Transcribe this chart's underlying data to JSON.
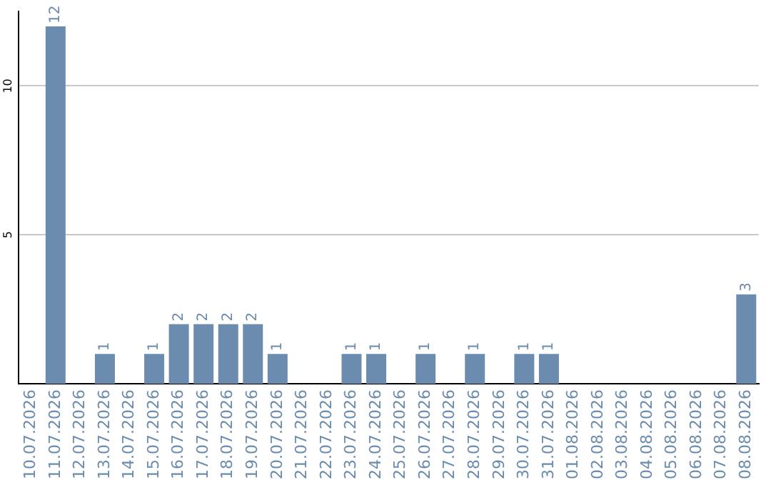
{
  "chart_data": {
    "type": "bar",
    "categories": [
      "10.07.2026",
      "11.07.2026",
      "12.07.2026",
      "13.07.2026",
      "14.07.2026",
      "15.07.2026",
      "16.07.2026",
      "17.07.2026",
      "18.07.2026",
      "19.07.2026",
      "20.07.2026",
      "21.07.2026",
      "22.07.2026",
      "23.07.2026",
      "24.07.2026",
      "25.07.2026",
      "26.07.2026",
      "27.07.2026",
      "28.07.2026",
      "29.07.2026",
      "30.07.2026",
      "31.07.2026",
      "01.08.2026",
      "02.08.2026",
      "03.08.2026",
      "04.08.2026",
      "05.08.2026",
      "06.08.2026",
      "07.08.2026",
      "08.08.2026"
    ],
    "values": [
      0,
      12,
      0,
      1,
      0,
      1,
      2,
      2,
      2,
      2,
      1,
      0,
      0,
      1,
      1,
      0,
      1,
      0,
      1,
      0,
      1,
      1,
      0,
      0,
      0,
      0,
      0,
      0,
      0,
      3
    ],
    "value_labels": [
      null,
      "12",
      null,
      "1",
      null,
      "1",
      "2",
      "2",
      "2",
      "2",
      "1",
      null,
      null,
      "1",
      "1",
      null,
      "1",
      null,
      "1",
      null,
      "1",
      "1",
      null,
      null,
      null,
      null,
      null,
      null,
      null,
      "3"
    ],
    "color": "#6b8cae",
    "ylim": [
      0,
      12.5
    ],
    "yticks": [
      5,
      10
    ],
    "grid": "y"
  }
}
